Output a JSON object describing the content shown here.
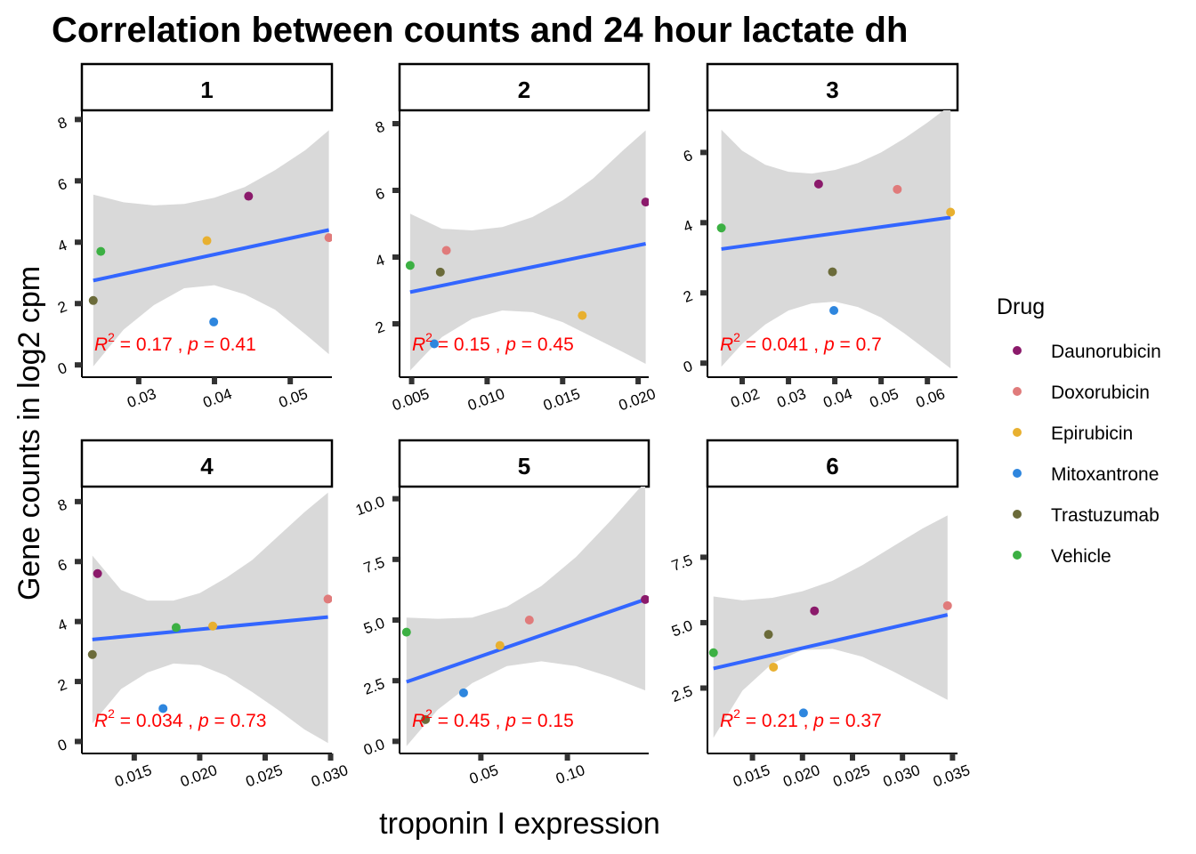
{
  "chart_data": {
    "type": "scatter",
    "title": "Correlation between counts and 24 hour lactate dh",
    "xlabel": "troponin I expression",
    "ylabel": "Gene counts in log2 cpm",
    "legend": {
      "title": "Drug",
      "placement": "right",
      "items": [
        {
          "name": "Daunorubicin",
          "color": "#8B1A6B"
        },
        {
          "name": "Doxorubicin",
          "color": "#E07B7B"
        },
        {
          "name": "Epirubicin",
          "color": "#E8B030"
        },
        {
          "name": "Mitoxantrone",
          "color": "#2E86DE"
        },
        {
          "name": "Trastuzumab",
          "color": "#6B6B3A"
        },
        {
          "name": "Vehicle",
          "color": "#3CB043"
        }
      ]
    },
    "fit_line_color": "#3366FF",
    "confidence_band_color": "#D9D9D9",
    "annotation_color": "#FF0000",
    "panels": [
      {
        "label": "1",
        "xlim": [
          0.0225,
          0.0555
        ],
        "ylim": [
          -0.4,
          8.3
        ],
        "x_ticks": [
          "0.03",
          "0.04",
          "0.05"
        ],
        "x_tick_values": [
          0.03,
          0.04,
          0.05
        ],
        "y_ticks": [
          "0",
          "2",
          "4",
          "6",
          "8"
        ],
        "y_tick_values": [
          0,
          2,
          4,
          6,
          8
        ],
        "r2": "0.17",
        "p": "0.41",
        "points": [
          {
            "drug": "Daunorubicin",
            "x": 0.0445,
            "y": 5.5
          },
          {
            "drug": "Doxorubicin",
            "x": 0.0551,
            "y": 4.15
          },
          {
            "drug": "Epirubicin",
            "x": 0.039,
            "y": 4.05
          },
          {
            "drug": "Mitoxantrone",
            "x": 0.0399,
            "y": 1.4
          },
          {
            "drug": "Trastuzumab",
            "x": 0.024,
            "y": 2.1
          },
          {
            "drug": "Vehicle",
            "x": 0.025,
            "y": 3.7
          }
        ],
        "fit": {
          "x": [
            0.024,
            0.0551
          ],
          "y": [
            2.75,
            4.4
          ]
        },
        "band": {
          "x": [
            0.024,
            0.028,
            0.032,
            0.036,
            0.04,
            0.044,
            0.048,
            0.052,
            0.0551
          ],
          "lower": [
            -0.05,
            1.15,
            1.95,
            2.5,
            2.6,
            2.3,
            1.8,
            1.0,
            0.35
          ],
          "upper": [
            5.55,
            5.3,
            5.2,
            5.25,
            5.45,
            5.8,
            6.35,
            7.0,
            7.65
          ]
        }
      },
      {
        "label": "2",
        "xlim": [
          0.0042,
          0.0207
        ],
        "ylim": [
          0.4,
          8.4
        ],
        "x_ticks": [
          "0.005",
          "0.010",
          "0.015",
          "0.020"
        ],
        "x_tick_values": [
          0.005,
          0.01,
          0.015,
          0.02
        ],
        "y_ticks": [
          "2",
          "4",
          "6",
          "8"
        ],
        "y_tick_values": [
          2,
          4,
          6,
          8
        ],
        "r2": "0.15",
        "p": "0.45",
        "points": [
          {
            "drug": "Daunorubicin",
            "x": 0.0205,
            "y": 5.65
          },
          {
            "drug": "Doxorubicin",
            "x": 0.0073,
            "y": 4.2
          },
          {
            "drug": "Epirubicin",
            "x": 0.0163,
            "y": 2.25
          },
          {
            "drug": "Mitoxantrone",
            "x": 0.0065,
            "y": 1.4
          },
          {
            "drug": "Trastuzumab",
            "x": 0.0069,
            "y": 3.55
          },
          {
            "drug": "Vehicle",
            "x": 0.0049,
            "y": 3.75
          }
        ],
        "fit": {
          "x": [
            0.0049,
            0.0205
          ],
          "y": [
            2.95,
            4.4
          ]
        },
        "band": {
          "x": [
            0.0049,
            0.007,
            0.009,
            0.011,
            0.013,
            0.015,
            0.017,
            0.019,
            0.0205
          ],
          "lower": [
            0.6,
            1.6,
            2.15,
            2.4,
            2.35,
            2.05,
            1.6,
            1.15,
            0.8
          ],
          "upper": [
            5.3,
            4.85,
            4.8,
            4.9,
            5.2,
            5.7,
            6.35,
            7.2,
            7.8
          ]
        }
      },
      {
        "label": "3",
        "xlim": [
          0.0125,
          0.0665
        ],
        "ylim": [
          -0.4,
          7.2
        ],
        "x_ticks": [
          "0.02",
          "0.03",
          "0.04",
          "0.05",
          "0.06"
        ],
        "x_tick_values": [
          0.02,
          0.03,
          0.04,
          0.05,
          0.06
        ],
        "y_ticks": [
          "0",
          "2",
          "4",
          "6"
        ],
        "y_tick_values": [
          0,
          2,
          4,
          6
        ],
        "r2": "0.041",
        "p": "0.7",
        "points": [
          {
            "drug": "Daunorubicin",
            "x": 0.0365,
            "y": 5.1
          },
          {
            "drug": "Doxorubicin",
            "x": 0.0535,
            "y": 4.95
          },
          {
            "drug": "Epirubicin",
            "x": 0.065,
            "y": 4.3
          },
          {
            "drug": "Mitoxantrone",
            "x": 0.0398,
            "y": 1.5
          },
          {
            "drug": "Trastuzumab",
            "x": 0.0395,
            "y": 2.6
          },
          {
            "drug": "Vehicle",
            "x": 0.0155,
            "y": 3.85
          }
        ],
        "fit": {
          "x": [
            0.0155,
            0.065
          ],
          "y": [
            3.25,
            4.15
          ]
        },
        "band": {
          "x": [
            0.0155,
            0.02,
            0.025,
            0.03,
            0.035,
            0.04,
            0.045,
            0.05,
            0.055,
            0.06,
            0.065
          ],
          "lower": [
            -0.1,
            0.55,
            1.1,
            1.5,
            1.7,
            1.75,
            1.6,
            1.3,
            0.85,
            0.35,
            -0.15
          ],
          "upper": [
            6.65,
            6.05,
            5.65,
            5.45,
            5.4,
            5.5,
            5.7,
            6.0,
            6.4,
            6.85,
            7.35
          ]
        }
      },
      {
        "label": "4",
        "xlim": [
          0.011,
          0.0301
        ],
        "ylim": [
          -0.4,
          8.5
        ],
        "x_ticks": [
          "0.015",
          "0.020",
          "0.025",
          "0.030"
        ],
        "x_tick_values": [
          0.015,
          0.02,
          0.025,
          0.03
        ],
        "y_ticks": [
          "0",
          "2",
          "4",
          "6",
          "8"
        ],
        "y_tick_values": [
          0,
          2,
          4,
          6,
          8
        ],
        "r2": "0.034",
        "p": "0.73",
        "points": [
          {
            "drug": "Daunorubicin",
            "x": 0.0122,
            "y": 5.6
          },
          {
            "drug": "Doxorubicin",
            "x": 0.0298,
            "y": 4.75
          },
          {
            "drug": "Epirubicin",
            "x": 0.021,
            "y": 3.85
          },
          {
            "drug": "Mitoxantrone",
            "x": 0.0172,
            "y": 1.1
          },
          {
            "drug": "Trastuzumab",
            "x": 0.0118,
            "y": 2.9
          },
          {
            "drug": "Vehicle",
            "x": 0.0182,
            "y": 3.8
          }
        ],
        "fit": {
          "x": [
            0.0118,
            0.0298
          ],
          "y": [
            3.4,
            4.15
          ]
        },
        "band": {
          "x": [
            0.0118,
            0.014,
            0.016,
            0.018,
            0.02,
            0.022,
            0.024,
            0.026,
            0.028,
            0.0298
          ],
          "lower": [
            0.6,
            1.75,
            2.3,
            2.6,
            2.55,
            2.2,
            1.65,
            1.05,
            0.4,
            -0.05
          ],
          "upper": [
            6.2,
            5.05,
            4.7,
            4.7,
            4.95,
            5.45,
            6.05,
            6.85,
            7.65,
            8.3
          ]
        }
      },
      {
        "label": "5",
        "xlim": [
          0.003,
          0.147
        ],
        "ylim": [
          -0.5,
          10.5
        ],
        "x_ticks": [
          "0.05",
          "0.10"
        ],
        "x_tick_values": [
          0.05,
          0.1
        ],
        "y_ticks": [
          "0.0",
          "2.5",
          "5.0",
          "7.5",
          "10.0"
        ],
        "y_tick_values": [
          0,
          2.5,
          5,
          7.5,
          10
        ],
        "r2": "0.45",
        "p": "0.15",
        "points": [
          {
            "drug": "Daunorubicin",
            "x": 0.145,
            "y": 5.85
          },
          {
            "drug": "Doxorubicin",
            "x": 0.078,
            "y": 5.0
          },
          {
            "drug": "Epirubicin",
            "x": 0.061,
            "y": 3.95
          },
          {
            "drug": "Mitoxantrone",
            "x": 0.04,
            "y": 2.0
          },
          {
            "drug": "Trastuzumab",
            "x": 0.018,
            "y": 0.9
          },
          {
            "drug": "Vehicle",
            "x": 0.007,
            "y": 4.5
          }
        ],
        "fit": {
          "x": [
            0.007,
            0.145
          ],
          "y": [
            2.45,
            5.85
          ]
        },
        "band": {
          "x": [
            0.007,
            0.025,
            0.045,
            0.065,
            0.085,
            0.105,
            0.125,
            0.145
          ],
          "lower": [
            -0.2,
            1.3,
            2.4,
            3.1,
            3.3,
            3.1,
            2.65,
            2.1
          ],
          "upper": [
            5.1,
            5.05,
            5.1,
            5.55,
            6.4,
            7.6,
            9.1,
            10.7
          ]
        }
      },
      {
        "label": "6",
        "xlim": [
          0.0105,
          0.0355
        ],
        "ylim": [
          0.0,
          10.2
        ],
        "x_ticks": [
          "0.015",
          "0.020",
          "0.025",
          "0.030",
          "0.035"
        ],
        "x_tick_values": [
          0.015,
          0.02,
          0.025,
          0.03,
          0.035
        ],
        "y_ticks": [
          "2.5",
          "5.0",
          "7.5"
        ],
        "y_tick_values": [
          2.5,
          5,
          7.5
        ],
        "r2": "0.21",
        "p": "0.37",
        "points": [
          {
            "drug": "Daunorubicin",
            "x": 0.0212,
            "y": 5.45
          },
          {
            "drug": "Doxorubicin",
            "x": 0.0345,
            "y": 5.65
          },
          {
            "drug": "Epirubicin",
            "x": 0.0171,
            "y": 3.3
          },
          {
            "drug": "Mitoxantrone",
            "x": 0.0201,
            "y": 1.55
          },
          {
            "drug": "Trastuzumab",
            "x": 0.0166,
            "y": 4.55
          },
          {
            "drug": "Vehicle",
            "x": 0.0111,
            "y": 3.85
          }
        ],
        "fit": {
          "x": [
            0.0111,
            0.0345
          ],
          "y": [
            3.25,
            5.3
          ]
        },
        "band": {
          "x": [
            0.0111,
            0.014,
            0.017,
            0.02,
            0.023,
            0.026,
            0.029,
            0.032,
            0.0345
          ],
          "lower": [
            0.6,
            2.4,
            3.45,
            3.95,
            4.0,
            3.7,
            3.15,
            2.55,
            2.05
          ],
          "upper": [
            6.0,
            5.85,
            5.95,
            6.2,
            6.6,
            7.2,
            7.9,
            8.6,
            9.1
          ]
        }
      }
    ]
  }
}
